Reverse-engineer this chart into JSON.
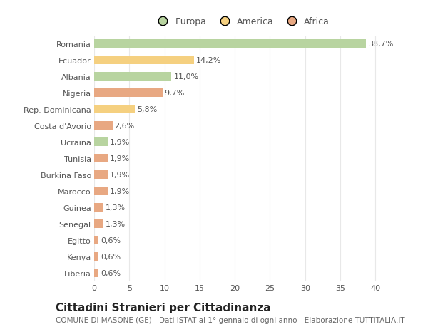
{
  "categories": [
    "Liberia",
    "Kenya",
    "Egitto",
    "Senegal",
    "Guinea",
    "Marocco",
    "Burkina Faso",
    "Tunisia",
    "Ucraina",
    "Costa d'Avorio",
    "Rep. Dominicana",
    "Nigeria",
    "Albania",
    "Ecuador",
    "Romania"
  ],
  "values": [
    0.6,
    0.6,
    0.6,
    1.3,
    1.3,
    1.9,
    1.9,
    1.9,
    1.9,
    2.6,
    5.8,
    9.7,
    11.0,
    14.2,
    38.7
  ],
  "labels": [
    "0,6%",
    "0,6%",
    "0,6%",
    "1,3%",
    "1,3%",
    "1,9%",
    "1,9%",
    "1,9%",
    "1,9%",
    "2,6%",
    "5,8%",
    "9,7%",
    "11,0%",
    "14,2%",
    "38,7%"
  ],
  "colors": [
    "#E8A882",
    "#E8A882",
    "#E8A882",
    "#E8A882",
    "#E8A882",
    "#E8A882",
    "#E8A882",
    "#E8A882",
    "#B8D4A0",
    "#E8A882",
    "#F5D080",
    "#E8A882",
    "#B8D4A0",
    "#F5D080",
    "#B8D4A0"
  ],
  "legend_labels": [
    "Europa",
    "America",
    "Africa"
  ],
  "legend_colors": [
    "#B8D4A0",
    "#F5D080",
    "#E8A882"
  ],
  "title": "Cittadini Stranieri per Cittadinanza",
  "subtitle": "COMUNE DI MASONE (GE) - Dati ISTAT al 1° gennaio di ogni anno - Elaborazione TUTTITALIA.IT",
  "xlim": [
    0,
    42
  ],
  "xticks": [
    0,
    5,
    10,
    15,
    20,
    25,
    30,
    35,
    40
  ],
  "background_color": "#ffffff",
  "grid_color": "#e8e8e8",
  "bar_height": 0.55,
  "title_fontsize": 11,
  "subtitle_fontsize": 7.5,
  "tick_fontsize": 8,
  "label_fontsize": 8,
  "legend_fontsize": 9
}
